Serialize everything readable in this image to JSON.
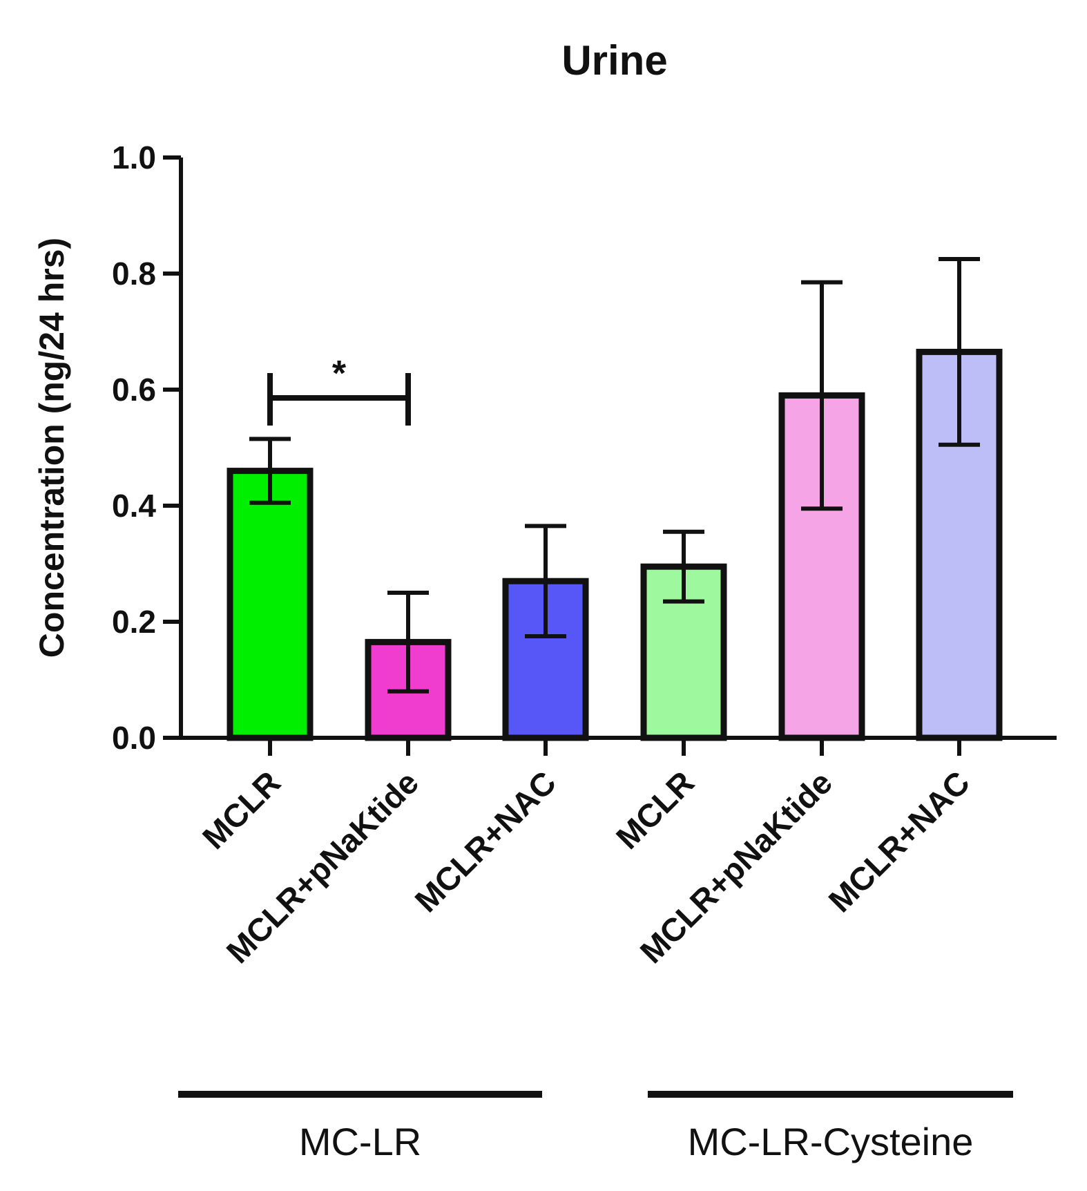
{
  "chart_data": {
    "type": "bar",
    "title": "Urine",
    "ylabel": "Concentration (ng/24 hrs)",
    "xlabel": "",
    "ylim": [
      0,
      1.0
    ],
    "yticks": [
      0.0,
      0.2,
      0.4,
      0.6,
      0.8,
      1.0
    ],
    "ytick_labels": [
      "0.0",
      "0.2",
      "0.4",
      "0.6",
      "0.8",
      "1.0"
    ],
    "categories": [
      "MCLR",
      "MCLR+pNaKtide",
      "MCLR+NAC",
      "MCLR",
      "MCLR+pNaKtide",
      "MCLR+NAC"
    ],
    "values": [
      0.46,
      0.165,
      0.27,
      0.295,
      0.59,
      0.665
    ],
    "error": [
      0.055,
      0.085,
      0.095,
      0.06,
      0.195,
      0.16
    ],
    "colors": [
      "#00ee00",
      "#f03ccf",
      "#5757f8",
      "#9ef89e",
      "#f5a5e5",
      "#bdbdf8"
    ],
    "groups": [
      {
        "label": "MC-LR",
        "categories": [
          0,
          1,
          2
        ]
      },
      {
        "label": "MC-LR-Cysteine",
        "categories": [
          3,
          4,
          5
        ]
      }
    ],
    "annotations": [
      {
        "text": "*",
        "from": 0,
        "to": 1
      }
    ],
    "grid": false,
    "legend": "none"
  }
}
